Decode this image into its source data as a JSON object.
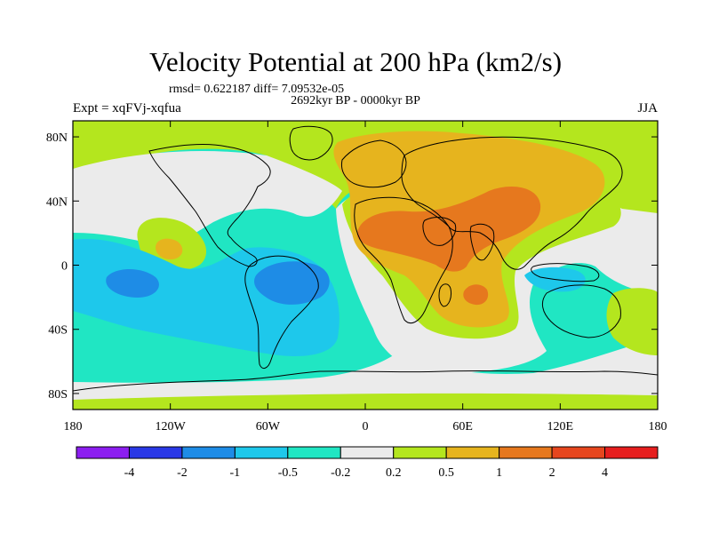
{
  "title": "Velocity Potential at 200 hPa (km2/s)",
  "stats": "rmsd= 0.622187 diff= 7.09532e-05",
  "left_label": "Expt = xqFVj-xqfua",
  "center_label": "2692kyr BP - 0000kyr BP",
  "right_label": "JJA",
  "map": {
    "lon_range": [
      -180,
      180
    ],
    "lat_range": [
      -90,
      90
    ],
    "lon_ticks": [
      {
        "value": -180,
        "label": "180"
      },
      {
        "value": -120,
        "label": "120W"
      },
      {
        "value": -60,
        "label": "60W"
      },
      {
        "value": 0,
        "label": "0"
      },
      {
        "value": 60,
        "label": "60E"
      },
      {
        "value": 120,
        "label": "120E"
      },
      {
        "value": 180,
        "label": "180"
      }
    ],
    "lat_ticks": [
      {
        "value": 80,
        "label": "80N"
      },
      {
        "value": 40,
        "label": "40N"
      },
      {
        "value": 0,
        "label": "0"
      },
      {
        "value": -40,
        "label": "40S"
      },
      {
        "value": -80,
        "label": "80S"
      }
    ]
  },
  "colorbar": {
    "colors": [
      "#8c1ef0",
      "#2a38e6",
      "#1e8ce6",
      "#1ec8eb",
      "#20e6c3",
      "#ebebeb",
      "#b4e61e",
      "#e6b41e",
      "#e6781e",
      "#e6461e",
      "#e61e1e"
    ],
    "tick_labels": [
      "-4",
      "-2",
      "-1",
      "-0.5",
      "-0.2",
      "0.2",
      "0.5",
      "1",
      "2",
      "4"
    ]
  },
  "fill_colors": {
    "ocean_base": "#20e6c3",
    "neg_mid": "#1ec8eb",
    "neg_strong": "#1e8ce6",
    "neutral": "#ebebeb",
    "pos_weak": "#b4e61e",
    "pos_mid": "#e6b41e",
    "pos_strong": "#e6781e"
  }
}
